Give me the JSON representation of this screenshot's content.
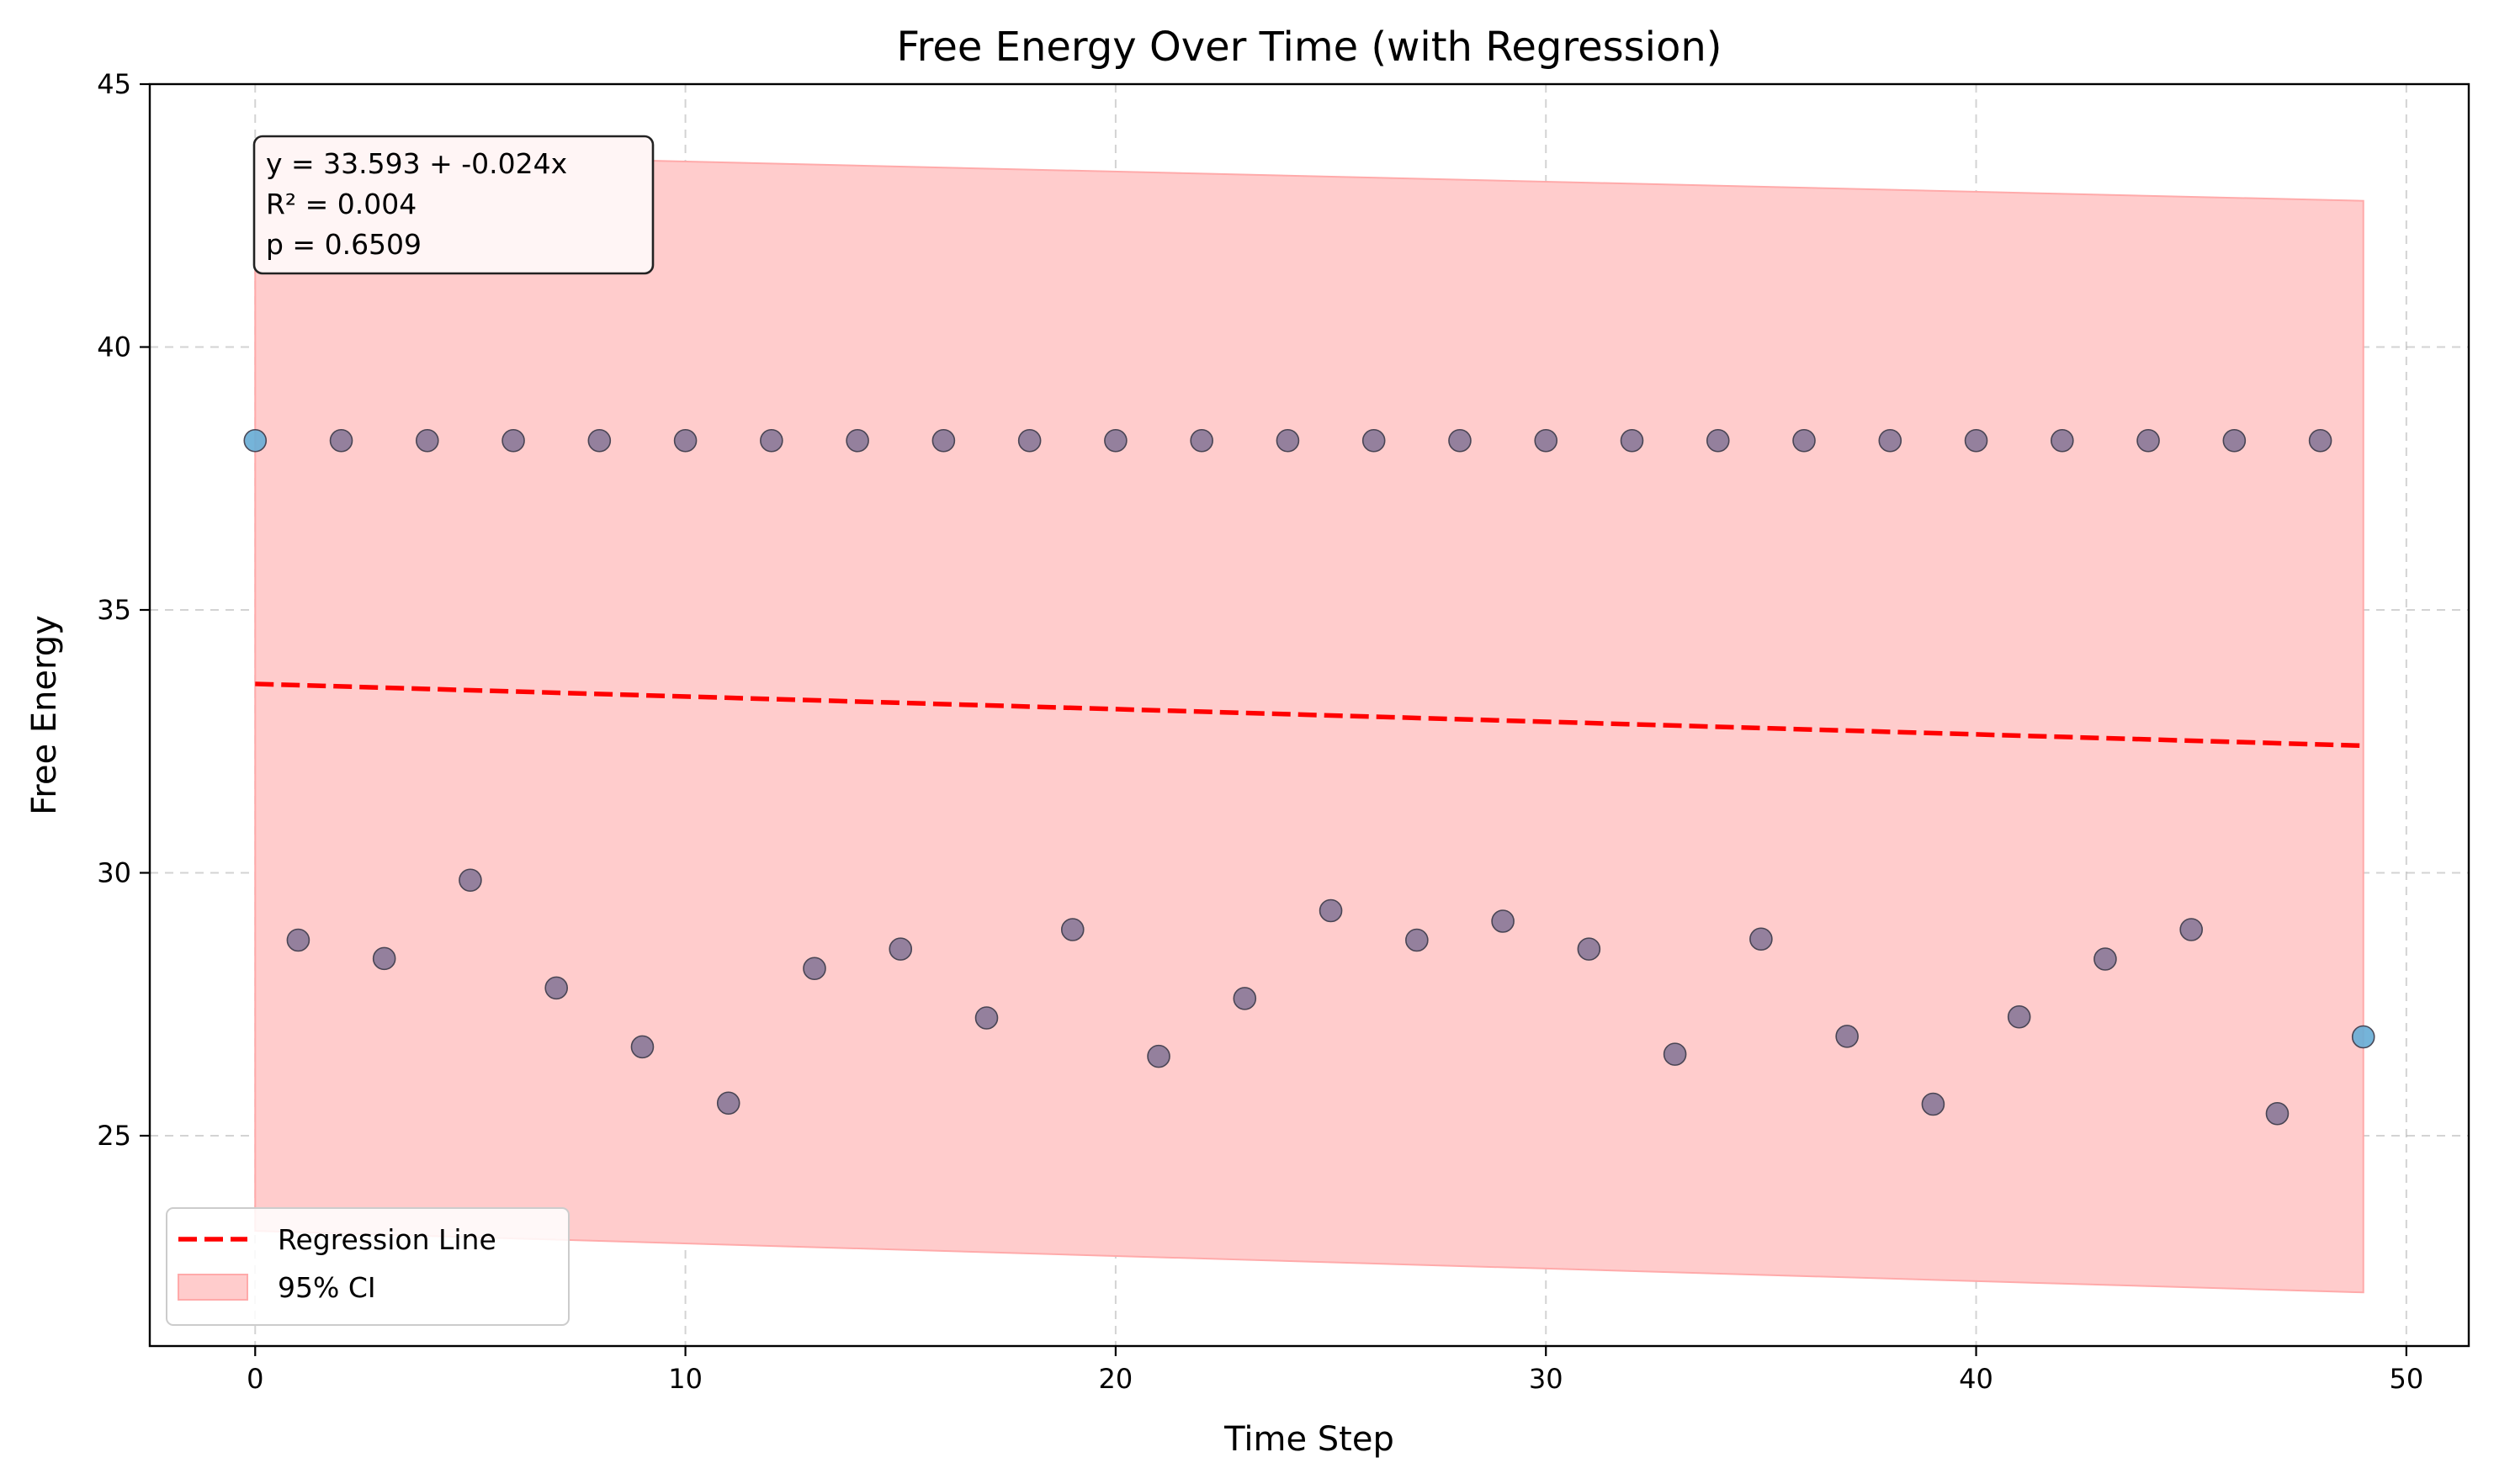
{
  "chart_data": {
    "type": "scatter",
    "title": "Free Energy Over Time (with Regression)",
    "xlabel": "Time Step",
    "ylabel": "Free Energy",
    "xlim": [
      -2.45,
      51.45
    ],
    "ylim": [
      21.0,
      45.0
    ],
    "xticks": [
      "0",
      "10",
      "20",
      "30",
      "40",
      "50"
    ],
    "yticks": [
      "25",
      "30",
      "35",
      "40",
      "45"
    ],
    "grid": true,
    "legend_position": "bottom-left",
    "colors": {
      "points": "#8b7a9a",
      "points_endpoint": "#6aaed6",
      "point_edge": "#3a3a4a",
      "regression": "#ff0000",
      "ci_fill": "#ffcccc",
      "ci_edge": "#ffaaaa"
    },
    "points": {
      "x": [
        0,
        1,
        2,
        3,
        4,
        5,
        6,
        7,
        8,
        9,
        10,
        11,
        12,
        13,
        14,
        15,
        16,
        17,
        18,
        19,
        20,
        21,
        22,
        23,
        24,
        25,
        26,
        27,
        28,
        29,
        30,
        31,
        32,
        33,
        34,
        35,
        36,
        37,
        38,
        39,
        40,
        41,
        42,
        43,
        44,
        45,
        46,
        47,
        48,
        49
      ],
      "y": [
        38.22,
        28.72,
        38.22,
        28.37,
        38.22,
        29.86,
        38.22,
        27.81,
        38.22,
        26.69,
        38.22,
        25.62,
        38.22,
        28.18,
        38.22,
        28.55,
        38.22,
        27.24,
        38.22,
        28.92,
        38.22,
        26.51,
        38.22,
        27.61,
        38.22,
        29.28,
        38.22,
        28.72,
        38.22,
        29.08,
        38.22,
        28.55,
        38.22,
        26.55,
        38.22,
        28.74,
        38.22,
        26.89,
        38.22,
        25.6,
        38.22,
        27.26,
        38.22,
        28.36,
        38.22,
        28.92,
        38.22,
        25.42,
        38.22,
        26.88
      ]
    },
    "regression": {
      "name": "Regression Line",
      "intercept": 33.593,
      "slope": -0.024,
      "x_range": [
        0,
        49
      ]
    },
    "confidence_band": {
      "name": "95% CI",
      "x": [
        0,
        49
      ],
      "upper": [
        43.72,
        42.78
      ],
      "lower": [
        23.19,
        22.02
      ]
    },
    "annotation": {
      "lines": [
        "y = 33.593 + -0.024x",
        "R² = 0.004",
        "p = 0.6509"
      ]
    },
    "legend": [
      "Regression Line",
      "95% CI"
    ]
  }
}
